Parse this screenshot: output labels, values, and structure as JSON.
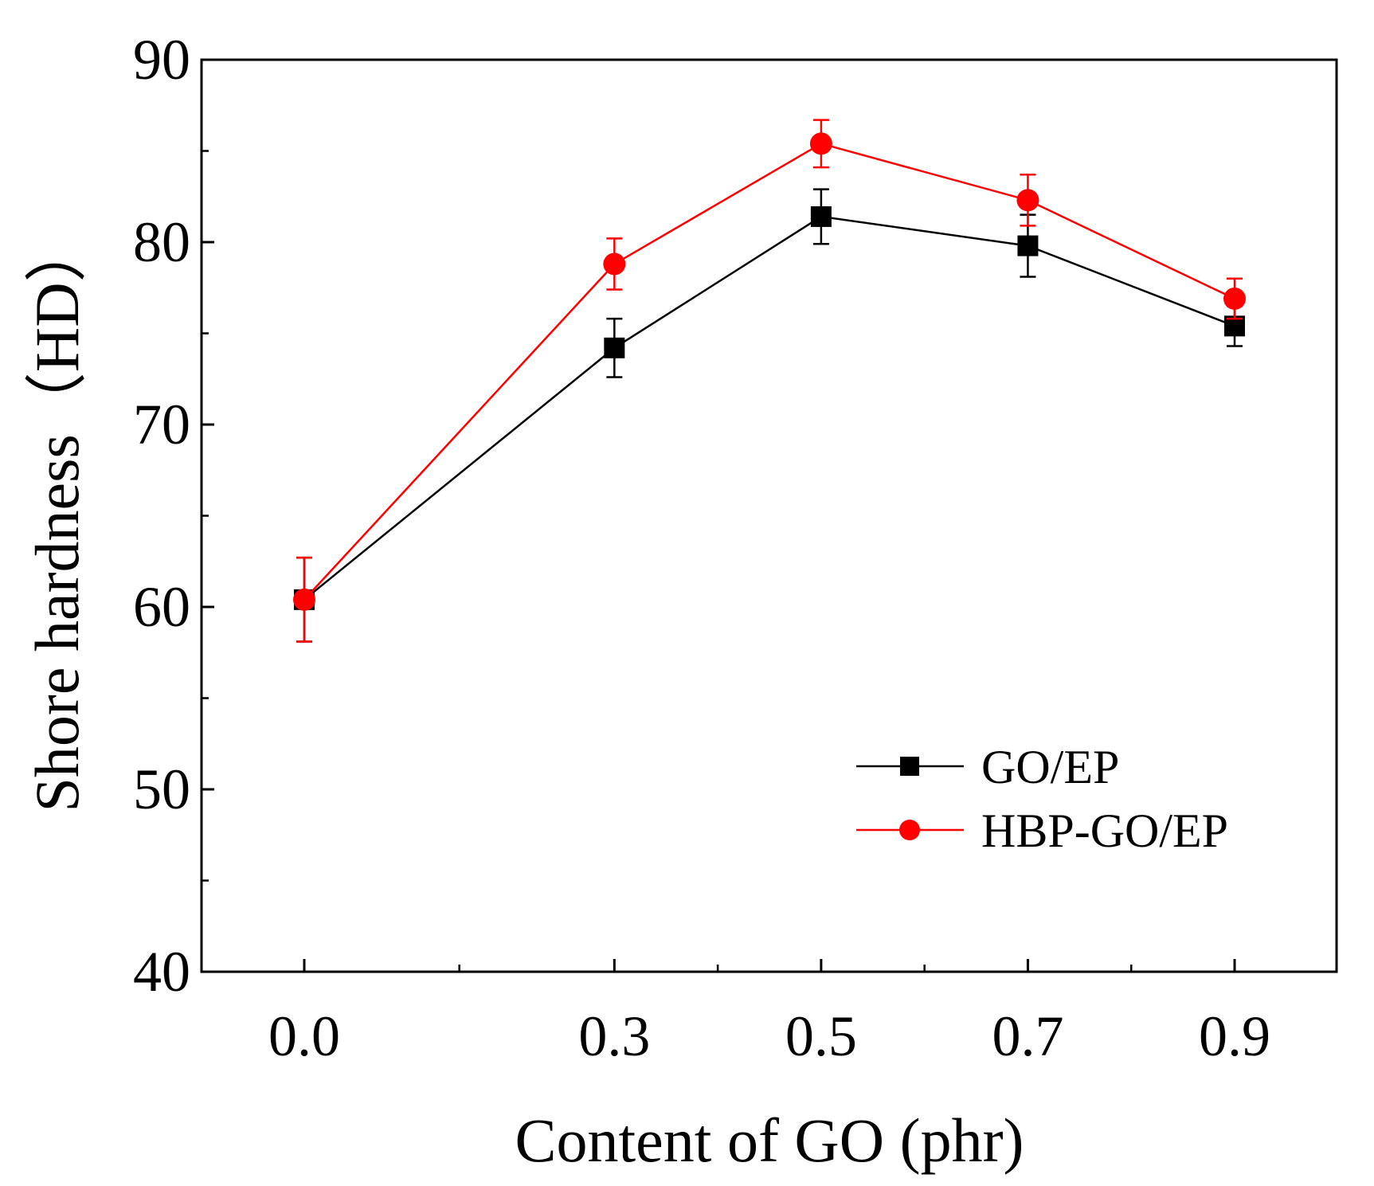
{
  "chart_data": {
    "type": "line",
    "title": "",
    "xlabel": "Content of GO (phr)",
    "ylabel": "Shore hardness（HD）",
    "x": [
      0.0,
      0.3,
      0.5,
      0.7,
      0.9
    ],
    "x_tick_labels": [
      "0.0",
      "0.3",
      "0.5",
      "0.7",
      "0.9"
    ],
    "ylim": [
      40,
      90
    ],
    "y_ticks": [
      40,
      50,
      60,
      70,
      80,
      90
    ],
    "y_tick_labels": [
      "40",
      "50",
      "60",
      "70",
      "80",
      "90"
    ],
    "grid": false,
    "legend_position": "bottom-right",
    "series": [
      {
        "name": "GO/EP",
        "color": "#000000",
        "marker": "square",
        "values": [
          60.4,
          74.2,
          81.4,
          79.8,
          75.4
        ],
        "errors": [
          2.3,
          1.6,
          1.5,
          1.7,
          1.1
        ]
      },
      {
        "name": "HBP-GO/EP",
        "color": "#ff0000",
        "marker": "circle",
        "values": [
          60.4,
          78.8,
          85.4,
          82.3,
          76.9
        ],
        "errors": [
          2.3,
          1.4,
          1.3,
          1.4,
          1.1
        ]
      }
    ]
  }
}
